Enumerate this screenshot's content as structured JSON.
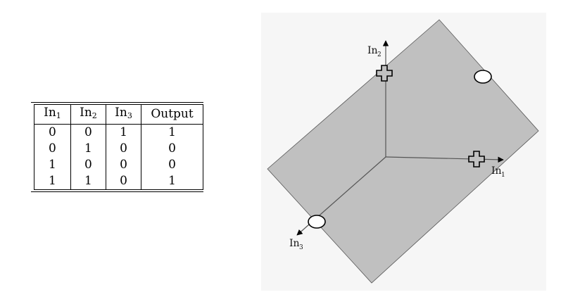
{
  "table": {
    "headers": [
      {
        "base": "In",
        "sub": "1"
      },
      {
        "base": "In",
        "sub": "2"
      },
      {
        "base": "In",
        "sub": "3"
      },
      {
        "base": "Output",
        "sub": ""
      }
    ],
    "rows": [
      [
        "0",
        "0",
        "1",
        "1"
      ],
      [
        "0",
        "1",
        "0",
        "0"
      ],
      [
        "1",
        "0",
        "0",
        "0"
      ],
      [
        "1",
        "1",
        "0",
        "1"
      ]
    ]
  },
  "diagram": {
    "axes": [
      {
        "name": "In",
        "sub": "1"
      },
      {
        "name": "In",
        "sub": "2"
      },
      {
        "name": "In",
        "sub": "3"
      }
    ],
    "points": [
      {
        "coords": [
          0,
          0,
          1
        ],
        "output": 1,
        "marker": "ellipse"
      },
      {
        "coords": [
          0,
          1,
          0
        ],
        "output": 0,
        "marker": "cross"
      },
      {
        "coords": [
          1,
          0,
          0
        ],
        "output": 0,
        "marker": "cross"
      },
      {
        "coords": [
          1,
          1,
          0
        ],
        "output": 1,
        "marker": "ellipse"
      }
    ],
    "colors": {
      "plane_fill": "#c0c0c0",
      "panel_background": "#f6f6f6"
    }
  }
}
